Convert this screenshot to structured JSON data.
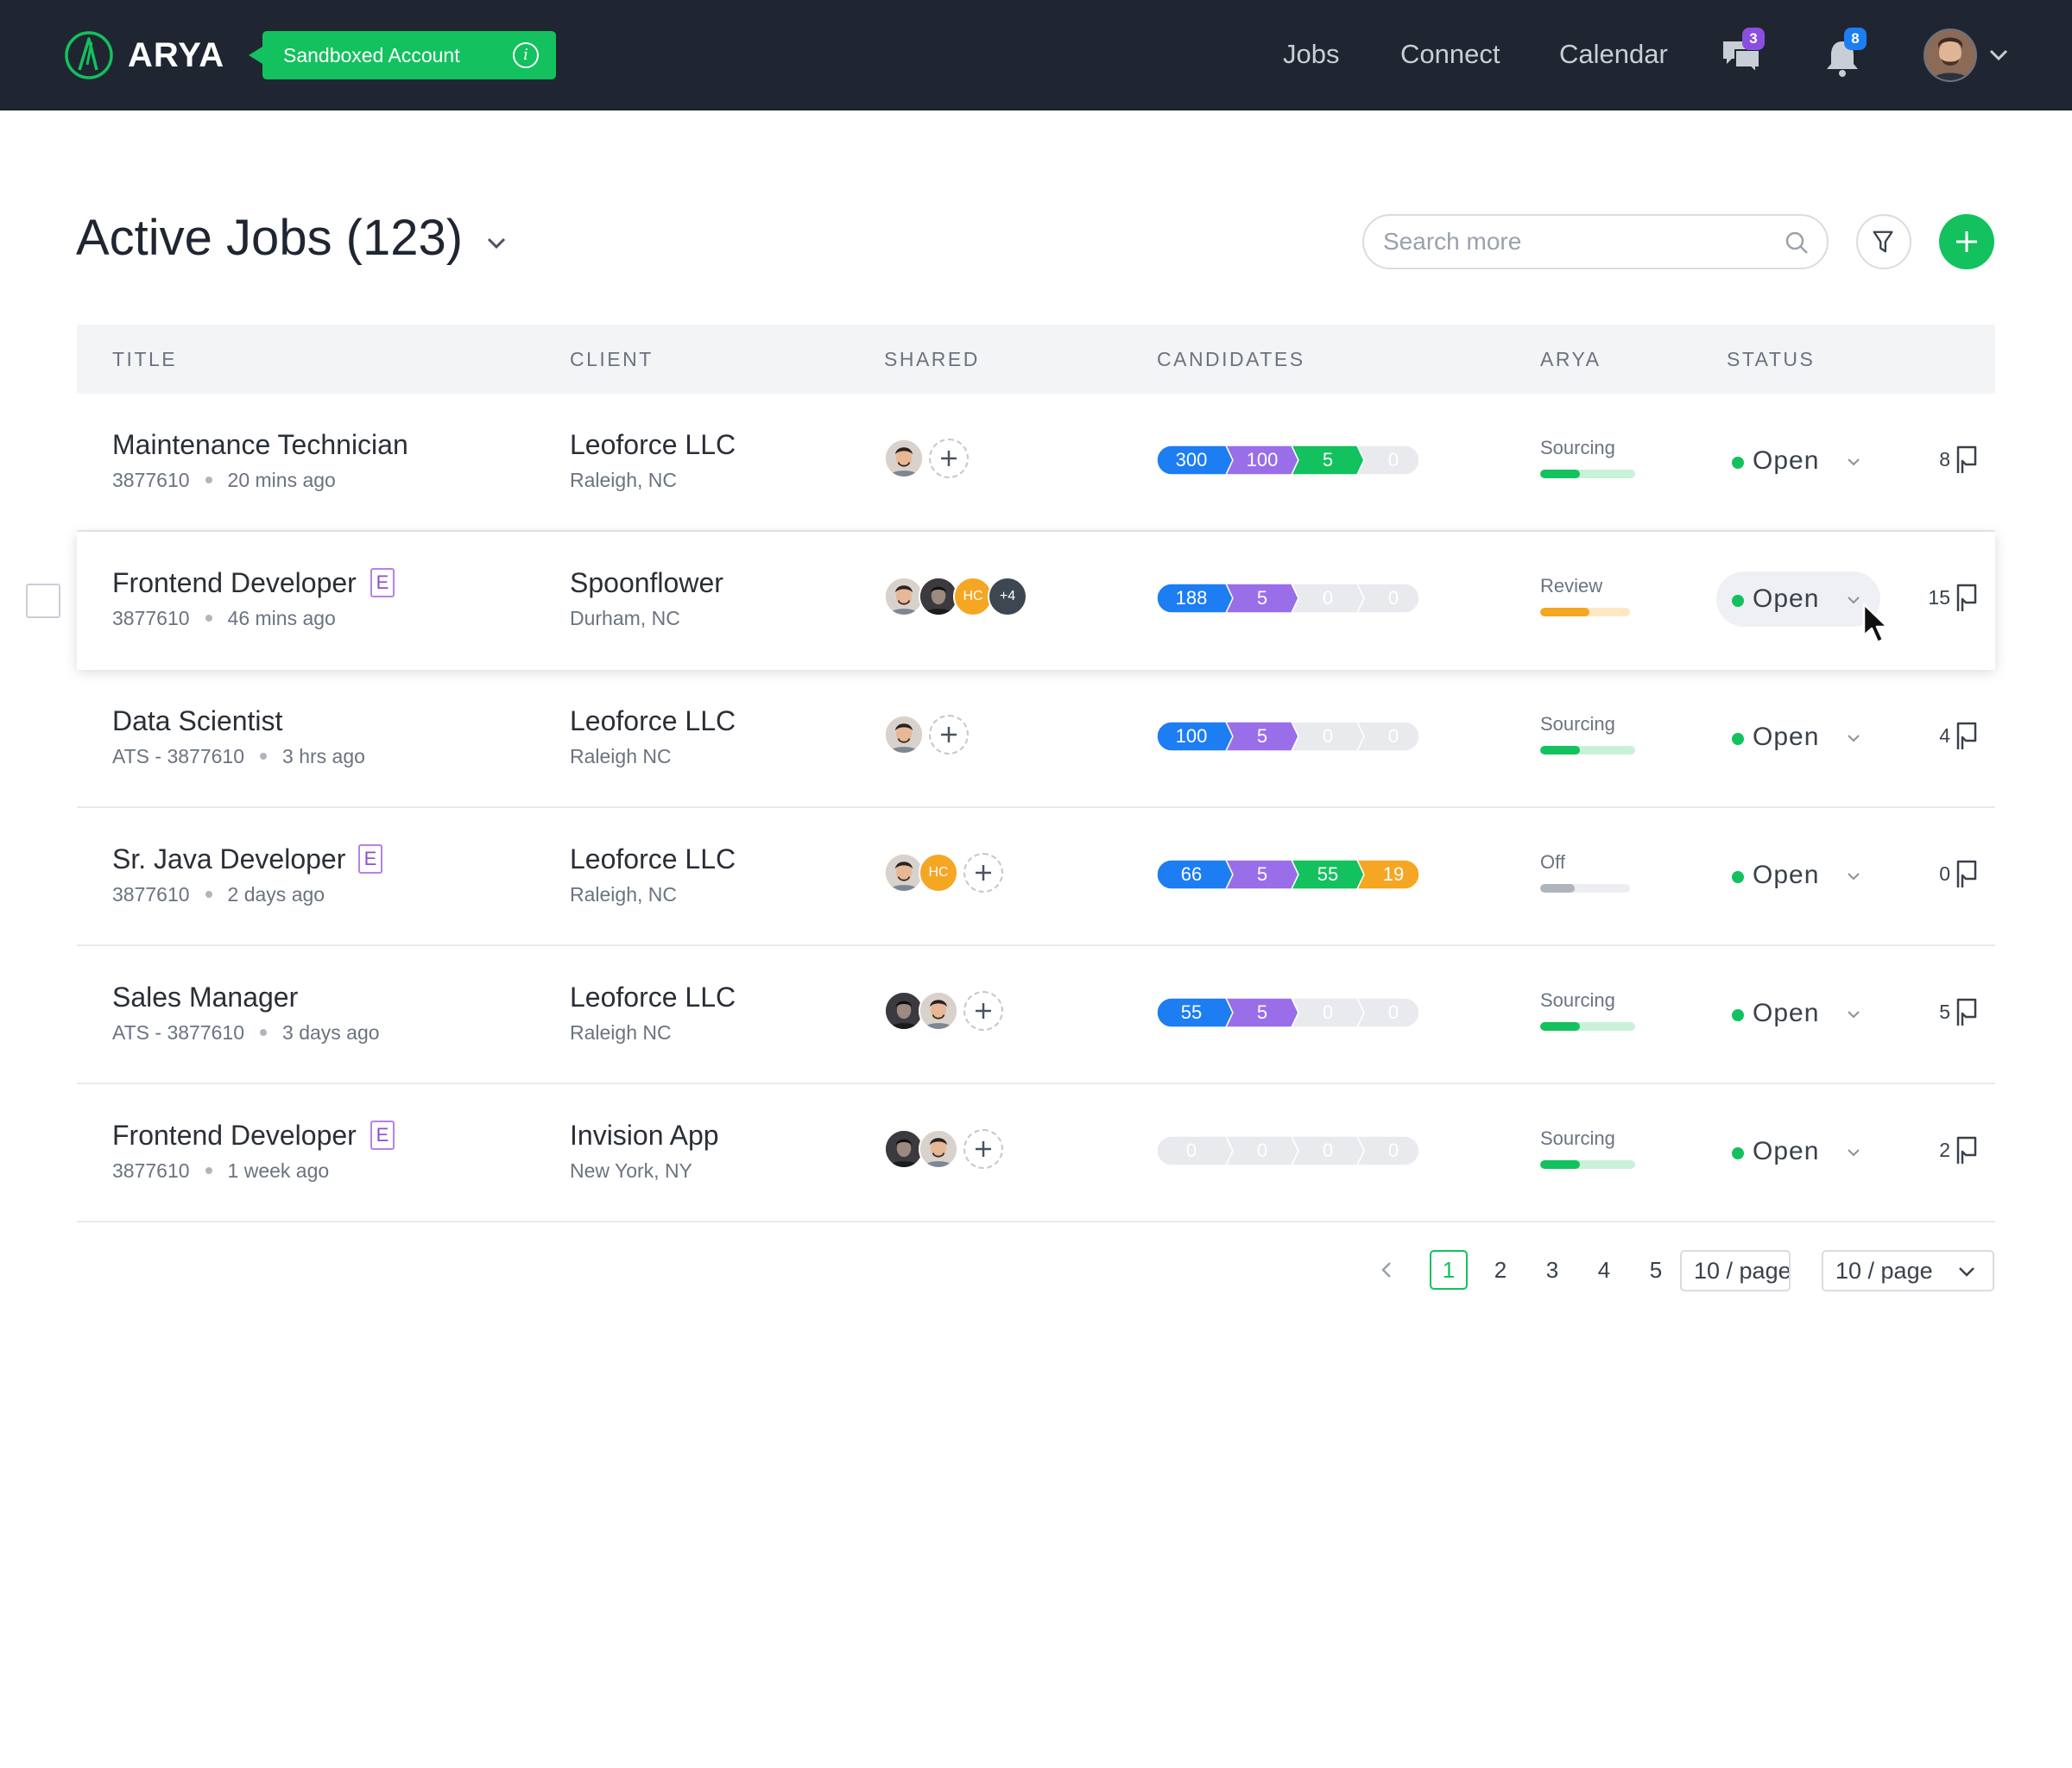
{
  "brand": {
    "name": "ARYA",
    "account_badge": "Sandboxed Account",
    "info_glyph": "i"
  },
  "nav": {
    "links": [
      "Jobs",
      "Connect",
      "Calendar"
    ],
    "messages_badge": "3",
    "notifications_badge": "8",
    "messages_badge_color": "#8a4fe0",
    "notifications_badge_color": "#1d7df2"
  },
  "page": {
    "title": "Active Jobs (123)",
    "search_placeholder": "Search more",
    "add_glyph": "+"
  },
  "table": {
    "headers": [
      "TITLE",
      "CLIENT",
      "SHARED",
      "CANDIDATES",
      "ARYA",
      "STATUS"
    ],
    "rows": [
      {
        "title": "Maintenance Technician",
        "badge": "",
        "meta_id": "3877610",
        "meta_time": "20 mins ago",
        "client": "Leoforce LLC",
        "location": "Raleigh, NC",
        "shared": [
          "face",
          "add"
        ],
        "candidates": [
          "300",
          "100",
          "5",
          "0"
        ],
        "arya": "Sourcing",
        "arya_level": 0.42,
        "status": "Open",
        "bookmarks": "8"
      },
      {
        "title": "Frontend Developer",
        "badge": "E",
        "meta_id": "3877610",
        "meta_time": "46 mins ago",
        "client": "Spoonflower",
        "location": "Durham, NC",
        "shared": [
          "face",
          "dark",
          "hc",
          "more"
        ],
        "hc_label": "HC",
        "more_label": "+4",
        "candidates": [
          "188",
          "5",
          "0",
          "0"
        ],
        "arya": "Review",
        "arya_level": 0.55,
        "status": "Open",
        "bookmarks": "15"
      },
      {
        "title": "Data Scientist",
        "badge": "",
        "meta_id": "ATS - 3877610",
        "meta_time": "3 hrs ago",
        "client": "Leoforce LLC",
        "location": "Raleigh NC",
        "shared": [
          "face",
          "add"
        ],
        "candidates": [
          "100",
          "5",
          "0",
          "0"
        ],
        "arya": "Sourcing",
        "arya_level": 0.42,
        "status": "Open",
        "bookmarks": "4"
      },
      {
        "title": "Sr. Java Developer",
        "badge": "E",
        "meta_id": "3877610",
        "meta_time": "2 days ago",
        "client": "Leoforce LLC",
        "location": "Raleigh, NC",
        "shared": [
          "face",
          "hc",
          "add"
        ],
        "hc_label": "HC",
        "candidates": [
          "66",
          "5",
          "55",
          "19"
        ],
        "arya": "Off",
        "arya_level": 0.38,
        "status": "Open",
        "bookmarks": "0"
      },
      {
        "title": "Sales Manager",
        "badge": "",
        "meta_id": "ATS - 3877610",
        "meta_time": "3 days ago",
        "client": "Leoforce LLC",
        "location": "Raleigh NC",
        "shared": [
          "dark",
          "face",
          "add"
        ],
        "candidates": [
          "55",
          "5",
          "0",
          "0"
        ],
        "arya": "Sourcing",
        "arya_level": 0.42,
        "status": "Open",
        "bookmarks": "5"
      },
      {
        "title": "Frontend Developer",
        "badge": "E",
        "meta_id": "3877610",
        "meta_time": "1 week ago",
        "client": "Invision App",
        "location": "New York, NY",
        "shared": [
          "dark",
          "face",
          "add"
        ],
        "candidates": [
          "0",
          "0",
          "0",
          "0"
        ],
        "arya": "Sourcing",
        "arya_level": 0.42,
        "status": "Open",
        "bookmarks": "2"
      }
    ]
  },
  "pagination": {
    "pages": [
      "1",
      "2",
      "3",
      "4",
      "5"
    ],
    "current": "1",
    "page_size_box": "10 / page",
    "page_size_select": "10 / page"
  },
  "colors": {
    "accent_green": "#13c15e",
    "cand_blue": "#1d7df2",
    "cand_purple": "#9a6ee8",
    "cand_green": "#13c15e",
    "cand_orange": "#f5a623",
    "cand_empty": "#e8eaee",
    "sourcing_fill": "#13c15e",
    "sourcing_track": "#c9f1d7",
    "review_fill": "#f5a623",
    "review_track": "#fde8c4",
    "off_fill": "#b0b5bd",
    "off_track": "#eceef1"
  }
}
